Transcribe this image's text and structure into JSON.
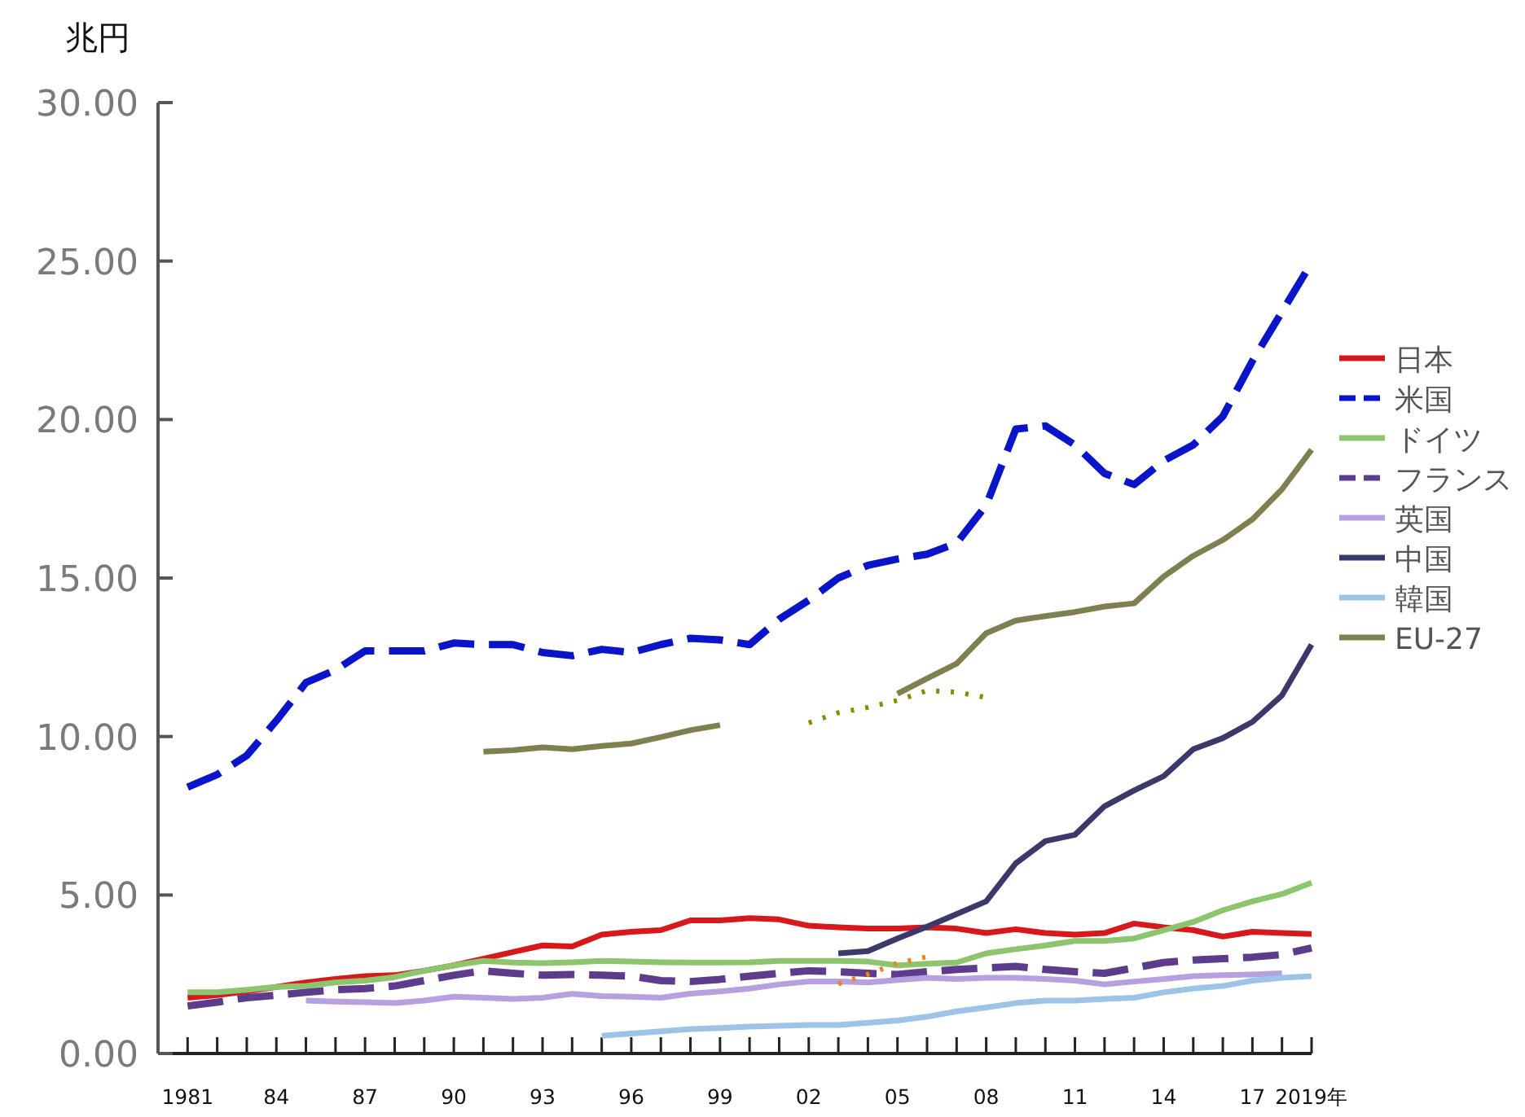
{
  "chart_data": {
    "type": "line",
    "ylabel": "兆円",
    "xlim": [
      1980,
      2019
    ],
    "ylim": [
      0,
      30
    ],
    "yticks": [
      {
        "value": 0,
        "label": "0.00"
      },
      {
        "value": 5,
        "label": "5.00"
      },
      {
        "value": 10,
        "label": "10.00"
      },
      {
        "value": 15,
        "label": "15.00"
      },
      {
        "value": 20,
        "label": "20.00"
      },
      {
        "value": 25,
        "label": "25.00"
      },
      {
        "value": 30,
        "label": "30.00"
      }
    ],
    "xticks": [
      {
        "value": 1981,
        "label": "1981"
      },
      {
        "value": 1982,
        "label": null
      },
      {
        "value": 1983,
        "label": null
      },
      {
        "value": 1984,
        "label": "84"
      },
      {
        "value": 1985,
        "label": null
      },
      {
        "value": 1986,
        "label": null
      },
      {
        "value": 1987,
        "label": "87"
      },
      {
        "value": 1988,
        "label": null
      },
      {
        "value": 1989,
        "label": null
      },
      {
        "value": 1990,
        "label": "90"
      },
      {
        "value": 1991,
        "label": null
      },
      {
        "value": 1992,
        "label": null
      },
      {
        "value": 1993,
        "label": "93"
      },
      {
        "value": 1994,
        "label": null
      },
      {
        "value": 1995,
        "label": null
      },
      {
        "value": 1996,
        "label": "96"
      },
      {
        "value": 1997,
        "label": null
      },
      {
        "value": 1998,
        "label": null
      },
      {
        "value": 1999,
        "label": "99"
      },
      {
        "value": 2000,
        "label": null
      },
      {
        "value": 2001,
        "label": null
      },
      {
        "value": 2002,
        "label": "02"
      },
      {
        "value": 2003,
        "label": null
      },
      {
        "value": 2004,
        "label": null
      },
      {
        "value": 2005,
        "label": "05"
      },
      {
        "value": 2006,
        "label": null
      },
      {
        "value": 2007,
        "label": null
      },
      {
        "value": 2008,
        "label": "08"
      },
      {
        "value": 2009,
        "label": null
      },
      {
        "value": 2010,
        "label": null
      },
      {
        "value": 2011,
        "label": "11"
      },
      {
        "value": 2012,
        "label": null
      },
      {
        "value": 2013,
        "label": null
      },
      {
        "value": 2014,
        "label": "14"
      },
      {
        "value": 2015,
        "label": null
      },
      {
        "value": 2016,
        "label": null
      },
      {
        "value": 2017,
        "label": "17"
      },
      {
        "value": 2018,
        "label": null
      },
      {
        "value": 2019,
        "label": "2019年"
      }
    ],
    "grid": false,
    "legend": "right",
    "series": [
      {
        "name": "日本",
        "color": "#d7191c",
        "line_style": "solid",
        "x": [
          1981,
          1982,
          1983,
          1984,
          1985,
          1986,
          1987,
          1988,
          1989,
          1990,
          1991,
          1992,
          1993,
          1994,
          1995,
          1996,
          1997,
          1998,
          1999,
          2000,
          2001,
          2002,
          2003,
          2004,
          2005,
          2006,
          2007,
          2008,
          2009,
          2010,
          2011,
          2012,
          2013,
          2014,
          2015,
          2016,
          2017,
          2018,
          2019
        ],
        "values": [
          1.76,
          1.84,
          1.96,
          2.1,
          2.24,
          2.35,
          2.44,
          2.47,
          2.61,
          2.78,
          2.99,
          3.2,
          3.41,
          3.38,
          3.75,
          3.84,
          3.89,
          4.2,
          4.2,
          4.27,
          4.23,
          4.03,
          3.98,
          3.94,
          3.94,
          3.98,
          3.94,
          3.8,
          3.92,
          3.8,
          3.75,
          3.8,
          4.1,
          3.98,
          3.89,
          3.69,
          3.84,
          3.8,
          3.77
        ]
      },
      {
        "name": "米国",
        "color": "#0a14c8",
        "line_style": "dashed",
        "x": [
          1981,
          1982,
          1983,
          1984,
          1985,
          1986,
          1987,
          1988,
          1989,
          1990,
          1991,
          1992,
          1993,
          1994,
          1995,
          1996,
          1997,
          1998,
          1999,
          2000,
          2001,
          2002,
          2003,
          2004,
          2005,
          2006,
          2007,
          2008,
          2009,
          2010,
          2011,
          2012,
          2013,
          2014,
          2015,
          2016,
          2017,
          2018,
          2019
        ],
        "values": [
          8.4,
          8.8,
          9.4,
          10.5,
          11.7,
          12.1,
          12.7,
          12.7,
          12.7,
          12.95,
          12.9,
          12.9,
          12.65,
          12.55,
          12.75,
          12.65,
          12.9,
          13.1,
          13.05,
          12.9,
          13.7,
          14.3,
          15.0,
          15.4,
          15.6,
          15.75,
          16.1,
          17.3,
          19.7,
          19.8,
          19.2,
          18.3,
          17.95,
          18.7,
          19.2,
          20.1,
          21.85,
          23.4,
          24.95
        ]
      },
      {
        "name": "ドイツ",
        "color": "#8cc56e",
        "line_style": "solid",
        "x": [
          1981,
          1982,
          1983,
          1984,
          1985,
          1986,
          1987,
          1988,
          1989,
          1990,
          1991,
          1992,
          1993,
          1994,
          1995,
          1996,
          1997,
          1998,
          1999,
          2000,
          2001,
          2002,
          2003,
          2004,
          2005,
          2006,
          2007,
          2008,
          2009,
          2010,
          2011,
          2012,
          2013,
          2014,
          2015,
          2016,
          2017,
          2018,
          2019
        ],
        "values": [
          1.93,
          1.93,
          2.01,
          2.1,
          2.13,
          2.24,
          2.3,
          2.41,
          2.61,
          2.78,
          2.92,
          2.87,
          2.85,
          2.88,
          2.92,
          2.9,
          2.88,
          2.87,
          2.87,
          2.88,
          2.92,
          2.92,
          2.92,
          2.9,
          2.78,
          2.83,
          2.87,
          3.16,
          3.29,
          3.41,
          3.55,
          3.55,
          3.63,
          3.89,
          4.15,
          4.52,
          4.8,
          5.03,
          5.39
        ]
      },
      {
        "name": "フランス",
        "color": "#5e3c8c",
        "line_style": "dashed",
        "x": [
          1981,
          1982,
          1983,
          1984,
          1985,
          1986,
          1987,
          1988,
          1989,
          1990,
          1991,
          1992,
          1993,
          1994,
          1995,
          1996,
          1997,
          1998,
          1999,
          2000,
          2001,
          2002,
          2003,
          2004,
          2005,
          2006,
          2007,
          2008,
          2009,
          2010,
          2011,
          2012,
          2013,
          2014,
          2015,
          2016,
          2017,
          2018,
          2019
        ],
        "values": [
          1.5,
          1.62,
          1.76,
          1.84,
          1.93,
          2.01,
          2.05,
          2.13,
          2.3,
          2.47,
          2.61,
          2.53,
          2.47,
          2.49,
          2.47,
          2.44,
          2.3,
          2.27,
          2.34,
          2.44,
          2.53,
          2.61,
          2.58,
          2.53,
          2.49,
          2.58,
          2.65,
          2.7,
          2.75,
          2.65,
          2.58,
          2.53,
          2.7,
          2.87,
          2.95,
          2.99,
          3.04,
          3.12,
          3.33
        ]
      },
      {
        "name": "英国",
        "color": "#b7a0e0",
        "line_style": "solid",
        "x": [
          1985,
          1986,
          1987,
          1988,
          1989,
          1990,
          1991,
          1992,
          1993,
          1994,
          1995,
          1996,
          1997,
          1998,
          1999,
          2000,
          2001,
          2002,
          2003,
          2004,
          2005,
          2006,
          2007,
          2008,
          2009,
          2010,
          2011,
          2012,
          2013,
          2014,
          2015,
          2016,
          2017,
          2018
        ],
        "values": [
          1.67,
          1.64,
          1.62,
          1.59,
          1.67,
          1.79,
          1.76,
          1.72,
          1.76,
          1.88,
          1.81,
          1.79,
          1.76,
          1.89,
          1.96,
          2.05,
          2.18,
          2.27,
          2.27,
          2.24,
          2.32,
          2.39,
          2.35,
          2.39,
          2.39,
          2.35,
          2.3,
          2.18,
          2.27,
          2.35,
          2.44,
          2.47,
          2.49,
          2.53
        ]
      },
      {
        "name": "中国",
        "color": "#3a3a6a",
        "line_style": "solid",
        "x": [
          2003,
          2004,
          2005,
          2006,
          2007,
          2008,
          2009,
          2010,
          2011,
          2012,
          2013,
          2014,
          2015,
          2016,
          2017,
          2018,
          2019
        ],
        "values": [
          3.16,
          3.23,
          3.63,
          4.0,
          4.4,
          4.8,
          6.0,
          6.7,
          6.9,
          7.8,
          8.3,
          8.75,
          9.6,
          9.95,
          10.46,
          11.3,
          12.9
        ]
      },
      {
        "name": "韓国",
        "color": "#9dc3e6",
        "line_style": "solid",
        "x": [
          1995,
          1996,
          1997,
          1998,
          1999,
          2000,
          2001,
          2002,
          2003,
          2004,
          2005,
          2006,
          2007,
          2008,
          2009,
          2010,
          2011,
          2012,
          2013,
          2014,
          2015,
          2016,
          2017,
          2018,
          2019
        ],
        "values": [
          0.56,
          0.63,
          0.7,
          0.77,
          0.8,
          0.85,
          0.87,
          0.9,
          0.9,
          0.97,
          1.04,
          1.16,
          1.33,
          1.45,
          1.59,
          1.67,
          1.67,
          1.72,
          1.76,
          1.93,
          2.05,
          2.13,
          2.3,
          2.39,
          2.44
        ]
      },
      {
        "name": "EU-27",
        "color": "#7f7f4f",
        "line_style": "solid",
        "x": [
          1991,
          1992,
          1993,
          1994,
          1995,
          1996,
          1997,
          1998,
          1999,
          2000,
          2001,
          2002,
          2003,
          2004,
          2005,
          2006,
          2007,
          2008,
          2009,
          2010,
          2011,
          2012,
          2013,
          2014,
          2015,
          2016,
          2017,
          2018,
          2019
        ],
        "values": [
          9.52,
          9.57,
          9.66,
          9.6,
          9.7,
          9.78,
          9.98,
          10.2,
          10.36,
          null,
          null,
          null,
          null,
          null,
          11.35,
          11.83,
          12.3,
          13.26,
          13.66,
          13.8,
          13.93,
          14.1,
          14.2,
          15.05,
          15.7,
          16.2,
          16.85,
          17.8,
          19.05
        ]
      },
      {
        "color": "#8a8a00",
        "line_style": "dotted",
        "x": [
          2002,
          2003,
          2004,
          2005,
          2006,
          2007,
          2008
        ],
        "values": [
          10.43,
          10.75,
          10.92,
          11.14,
          11.45,
          11.4,
          11.23
        ]
      },
      {
        "color": "#f08020",
        "line_style": "dotted",
        "x": [
          2003,
          2004,
          2005,
          2006
        ],
        "values": [
          2.2,
          2.5,
          2.85,
          3.05
        ]
      }
    ]
  }
}
